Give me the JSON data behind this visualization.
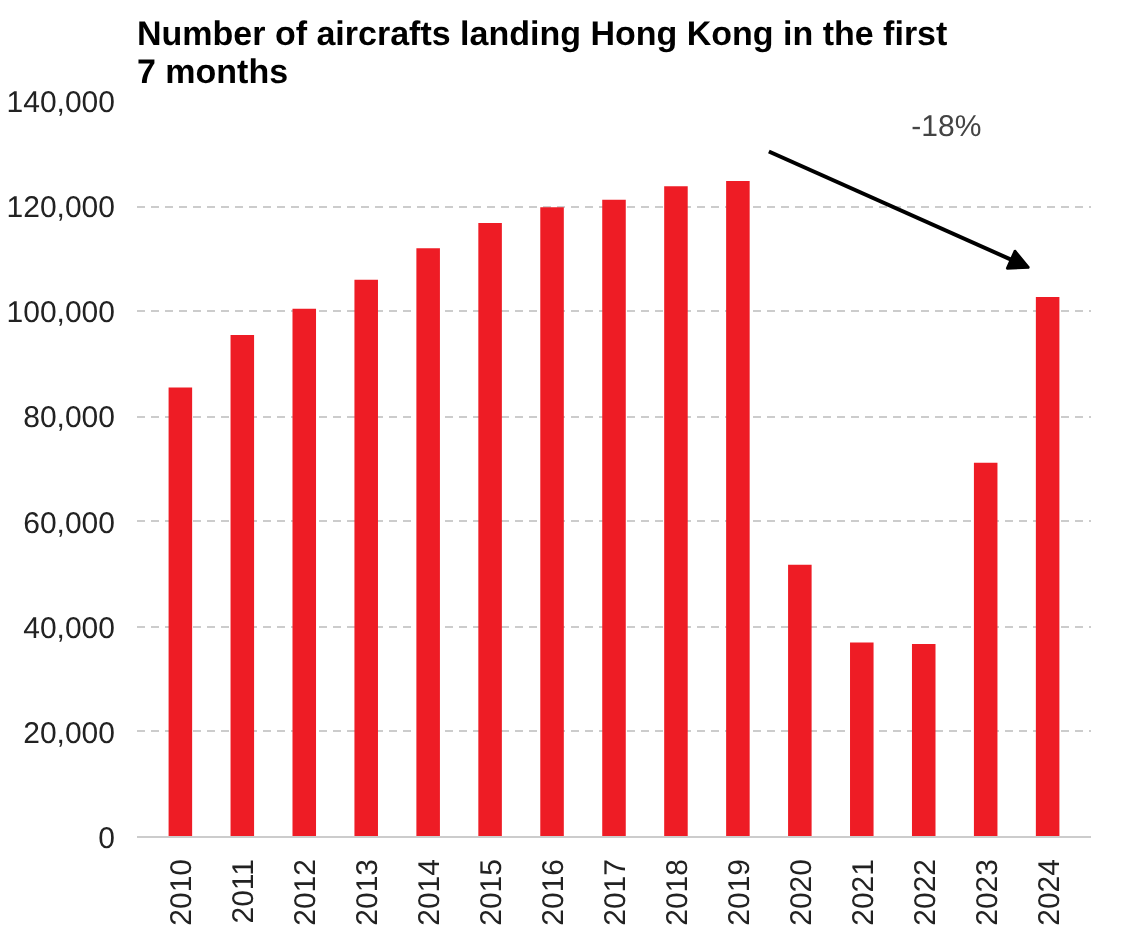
{
  "chart_data": {
    "type": "bar",
    "title": "Number of aircrafts landing Hong Kong in the first 7 months",
    "categories": [
      "2010",
      "2011",
      "2012",
      "2013",
      "2014",
      "2015",
      "2016",
      "2017",
      "2018",
      "2019",
      "2020",
      "2021",
      "2022",
      "2023",
      "2024"
    ],
    "values": [
      85500,
      95500,
      100500,
      106000,
      112000,
      116800,
      119800,
      121200,
      123800,
      124800,
      51800,
      37000,
      36700,
      71200,
      102700
    ],
    "color": "#ee1c25",
    "ylim": [
      0,
      140000
    ],
    "yticks": [
      {
        "value": 0,
        "label": "0"
      },
      {
        "value": 20000,
        "label": "20,000"
      },
      {
        "value": 40000,
        "label": "40,000"
      },
      {
        "value": 60000,
        "label": "60,000"
      },
      {
        "value": 80000,
        "label": "80,000"
      },
      {
        "value": 100000,
        "label": "100,000"
      },
      {
        "value": 120000,
        "label": "120,000"
      },
      {
        "value": 140000,
        "label": "140,000"
      }
    ],
    "grid": "y",
    "annotations": [
      "-18%"
    ]
  }
}
